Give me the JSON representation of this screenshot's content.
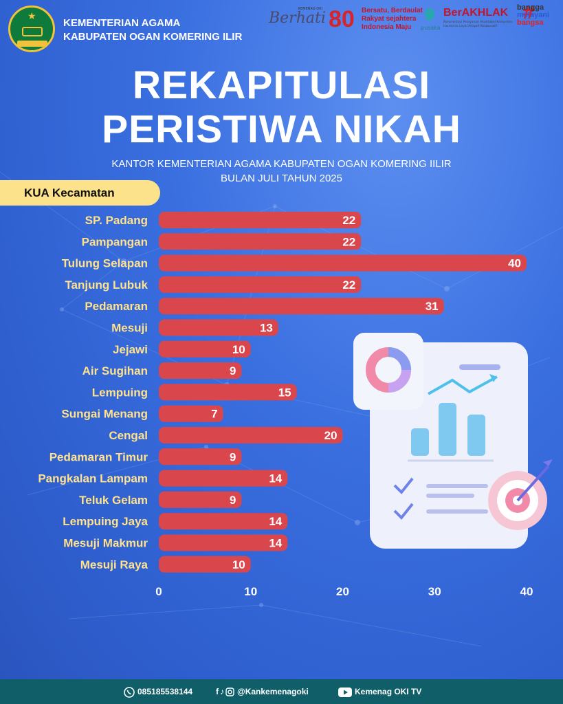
{
  "header": {
    "org_line1": "KEMENTERIAN AGAMA",
    "org_line2": "KABUPATEN OGAN KOMERING ILIR",
    "berhati_small": "KEMENAG OKI",
    "berhati_script": "Berhati",
    "badge_80": "80",
    "tagline_line1": "Bersatu, Berdaulat",
    "tagline_line2": "Rakyat sejahtera",
    "tagline_line3": "Indonesia Maju",
    "pusaka": "pusaka",
    "berakhlak": "BerAKHLAK",
    "berakhlak_sub": "Berorientasi Pelayanan Akuntabel Kompeten Harmonis Loyal Adaptif Kolaboratif",
    "bangga1": "bangga",
    "bangga2": "melayani",
    "bangga3": "bangsa"
  },
  "title_line1": "REKAPITULASI",
  "title_line2": "PERISTIWA NIKAH",
  "subtitle_line1": "KANTOR KEMENTERIAN AGAMA KABUPATEN OGAN KOMERING IILIR",
  "subtitle_line2": "BULAN JULI TAHUN 2025",
  "category_label": "KUA Kecamatan",
  "colors": {
    "bar": "#d9474d",
    "label": "#ffe28a",
    "tab": "#fce28b",
    "footer": "#0f5e68"
  },
  "chart_data": {
    "type": "bar",
    "orientation": "horizontal",
    "title": "REKAPITULASI PERISTIWA NIKAH",
    "ylabel": "KUA Kecamatan",
    "xlabel": "",
    "xlim": [
      0,
      40
    ],
    "xticks": [
      0,
      10,
      20,
      30,
      40
    ],
    "categories": [
      "SP. Padang",
      "Pampangan",
      "Tulung Selapan",
      "Tanjung Lubuk",
      "Pedamaran",
      "Mesuji",
      "Jejawi",
      "Air Sugihan",
      "Lempuing",
      "Sungai Menang",
      "Cengal",
      "Pedamaran Timur",
      "Pangkalan Lampam",
      "Teluk Gelam",
      "Lempuing Jaya",
      "Mesuji Makmur",
      "Mesuji Raya"
    ],
    "values": [
      22,
      22,
      40,
      22,
      31,
      13,
      10,
      9,
      15,
      7,
      20,
      9,
      14,
      9,
      14,
      14,
      10
    ]
  },
  "footer": {
    "phone": "085185538144",
    "social": "@Kankemenagoki",
    "youtube": "Kemenag OKI TV"
  }
}
